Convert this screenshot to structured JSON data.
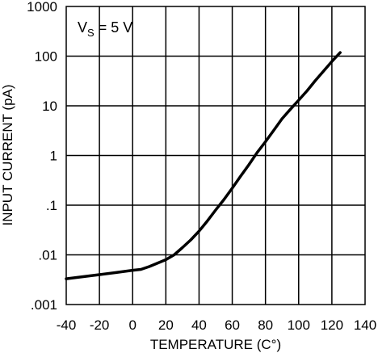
{
  "chart_data": {
    "type": "line",
    "xlabel": "TEMPERATURE (C°)",
    "ylabel": "INPUT CURRENT (pA)",
    "xlim": [
      -40,
      140
    ],
    "ylim": [
      0.001,
      1000
    ],
    "y_scale": "log",
    "grid": true,
    "x_ticks": [
      "-40",
      "-20",
      "0",
      "20",
      "40",
      "60",
      "80",
      "100",
      "120",
      "140"
    ],
    "y_ticks": [
      "1000",
      "100",
      "10",
      "1",
      ".1",
      ".01",
      ".001"
    ],
    "annotation": {
      "base": "V",
      "subscript": "S",
      "rest": " = 5 V"
    },
    "series": [
      {
        "x": [
          -40,
          -20,
          -10,
          0,
          5,
          10,
          20,
          25,
          30,
          35,
          40,
          45,
          50,
          55,
          60,
          65,
          70,
          75,
          80,
          85,
          90,
          95,
          100,
          105,
          110,
          115,
          120,
          125
        ],
        "y": [
          0.0033,
          0.004,
          0.0044,
          0.0049,
          0.0051,
          0.0058,
          0.008,
          0.01,
          0.014,
          0.02,
          0.03,
          0.048,
          0.08,
          0.13,
          0.22,
          0.38,
          0.65,
          1.15,
          1.9,
          3.2,
          5.5,
          8.5,
          13,
          20,
          32,
          50,
          78,
          118
        ]
      }
    ]
  }
}
